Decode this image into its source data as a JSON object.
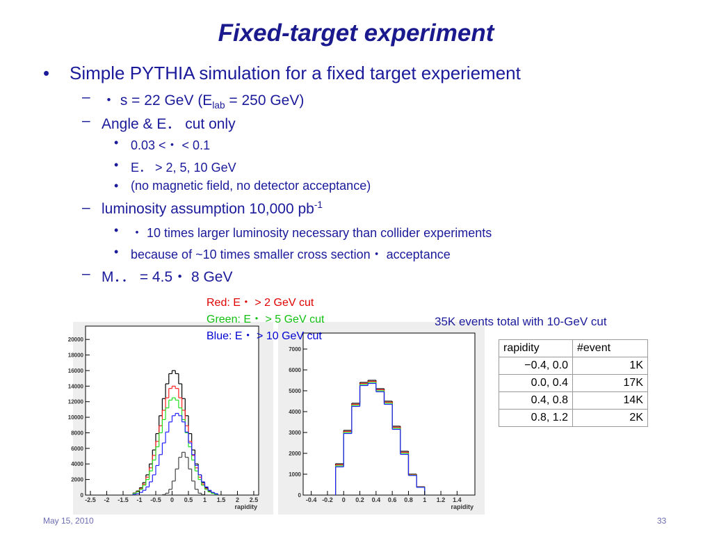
{
  "title": "Fixed-target experiment",
  "items": [
    {
      "level": 1,
      "text": "Simple PYTHIA simulation for a fixed target experiement"
    },
    {
      "level": 2,
      "text": "・ s = 22 GeV (E",
      "sub": "lab",
      "after": " = 250 GeV)"
    },
    {
      "level": 2,
      "text": "Angle & E．  cut only"
    },
    {
      "level": 3,
      "text": "0.03 <・  < 0.1"
    },
    {
      "level": 3,
      "text": "E．  > 2, 5, 10 GeV"
    },
    {
      "level": 3,
      "text": "(no magnetic field, no detector acceptance)"
    },
    {
      "level": 2,
      "text": "luminosity assumption 10,000 pb",
      "sup": "-1"
    },
    {
      "level": 3,
      "text": "・  10 times larger luminosity necessary than collider experiments"
    },
    {
      "level": 3,
      "text": "because of ~10 times smaller cross section・  acceptance"
    },
    {
      "level": 2,
      "text": "M．．  = 4.5・  8 GeV"
    }
  ],
  "legend": [
    {
      "text": "Red:    E・  > 2 GeV cut",
      "color": "#e00000"
    },
    {
      "text": "Green: E・  > 5 GeV cut",
      "color": "#10c010"
    },
    {
      "text": "Blue:    E・  > 10 GeV cut",
      "color": "#0000d0"
    }
  ],
  "note": "35K events total with 10-GeV cut",
  "table": {
    "header": [
      "rapidity",
      "#event"
    ],
    "rows": [
      [
        "−0.4, 0.0",
        "1K"
      ],
      [
        "0.0, 0.4",
        "17K"
      ],
      [
        "0.4, 0.8",
        "14K"
      ],
      [
        "0.8, 1.2",
        "2K"
      ]
    ]
  },
  "footer": {
    "date": "May 15, 2010",
    "page": "33"
  },
  "chart_data": [
    {
      "type": "histogram",
      "xlabel": "rapidity",
      "xlim": [
        -2.65,
        2.65
      ],
      "ylim": [
        0,
        21000
      ],
      "xticks": [
        -2.5,
        -2,
        -1.5,
        -1,
        -0.5,
        0,
        0.5,
        1,
        1.5,
        2,
        2.5
      ],
      "yticks": [
        0,
        2000,
        4000,
        6000,
        8000,
        10000,
        12000,
        14000,
        16000,
        18000,
        20000
      ],
      "bins": [
        -1.2,
        -1.1,
        -1.0,
        -0.9,
        -0.8,
        -0.7,
        -0.6,
        -0.5,
        -0.4,
        -0.3,
        -0.2,
        -0.1,
        0,
        0.1,
        0.2,
        0.3,
        0.4,
        0.5,
        0.6,
        0.7,
        0.8,
        0.9,
        1.0,
        1.1,
        1.2,
        1.3,
        1.4
      ],
      "series": [
        {
          "color": "#000000",
          "values": [
            270,
            520,
            940,
            1600,
            2600,
            4000,
            5800,
            7900,
            10200,
            12400,
            14300,
            15600,
            16000,
            15600,
            14300,
            12400,
            10200,
            7900,
            5800,
            4000,
            2600,
            1600,
            940,
            520,
            270,
            130
          ]
        },
        {
          "color": "#ff2020",
          "values": [
            240,
            450,
            820,
            1400,
            2300,
            3500,
            5100,
            6900,
            8900,
            10900,
            12500,
            13700,
            14000,
            13700,
            12500,
            10900,
            8900,
            6900,
            5100,
            3500,
            2300,
            1400,
            820,
            450,
            240,
            110
          ]
        },
        {
          "color": "#20e020",
          "values": [
            210,
            410,
            730,
            1250,
            2000,
            3100,
            4500,
            6200,
            8000,
            9700,
            11200,
            12200,
            12500,
            12200,
            11200,
            9700,
            8000,
            6200,
            4500,
            3100,
            2000,
            1250,
            730,
            410,
            210,
            100
          ]
        },
        {
          "color": "#2020ff",
          "values": [
            100,
            180,
            340,
            610,
            1050,
            1700,
            2600,
            3800,
            5200,
            6700,
            8100,
            9400,
            10200,
            10500,
            10200,
            9400,
            8100,
            6700,
            5200,
            3800,
            2600,
            1700,
            1050,
            610,
            340,
            180
          ]
        },
        {
          "color": "#444444",
          "values": [
            0,
            0,
            0,
            0,
            0,
            0,
            0,
            0,
            0,
            60,
            240,
            740,
            1800,
            3350,
            4850,
            5500,
            4850,
            3350,
            1800,
            740,
            240,
            60,
            0,
            0,
            0,
            0
          ]
        }
      ]
    },
    {
      "type": "histogram",
      "xlabel": "rapidity",
      "xlim": [
        -0.5,
        1.62
      ],
      "ylim": [
        0,
        7500
      ],
      "xticks": [
        -0.4,
        -0.2,
        0,
        0.2,
        0.4,
        0.6,
        0.8,
        1,
        1.2,
        1.4
      ],
      "yticks": [
        0,
        1000,
        2000,
        3000,
        4000,
        5000,
        6000,
        7000
      ],
      "bins": [
        -0.1,
        0,
        0.1,
        0.2,
        0.3,
        0.4,
        0.5,
        0.6,
        0.7,
        0.8,
        0.9,
        1.0
      ],
      "series": [
        {
          "color": "#000000",
          "values": [
            1500,
            3100,
            4400,
            5400,
            5500,
            5100,
            4500,
            3300,
            2100,
            1000,
            400
          ]
        },
        {
          "color": "#ff2020",
          "values": [
            1450,
            3050,
            4350,
            5350,
            5450,
            5050,
            4450,
            3250,
            2050,
            980,
            390
          ]
        },
        {
          "color": "#20e020",
          "values": [
            1400,
            3000,
            4300,
            5300,
            5400,
            5000,
            4400,
            3200,
            2000,
            960,
            380
          ]
        },
        {
          "color": "#2020ff",
          "values": [
            1350,
            2950,
            4250,
            5250,
            5350,
            4950,
            4350,
            3150,
            1950,
            940,
            370
          ]
        }
      ]
    }
  ]
}
